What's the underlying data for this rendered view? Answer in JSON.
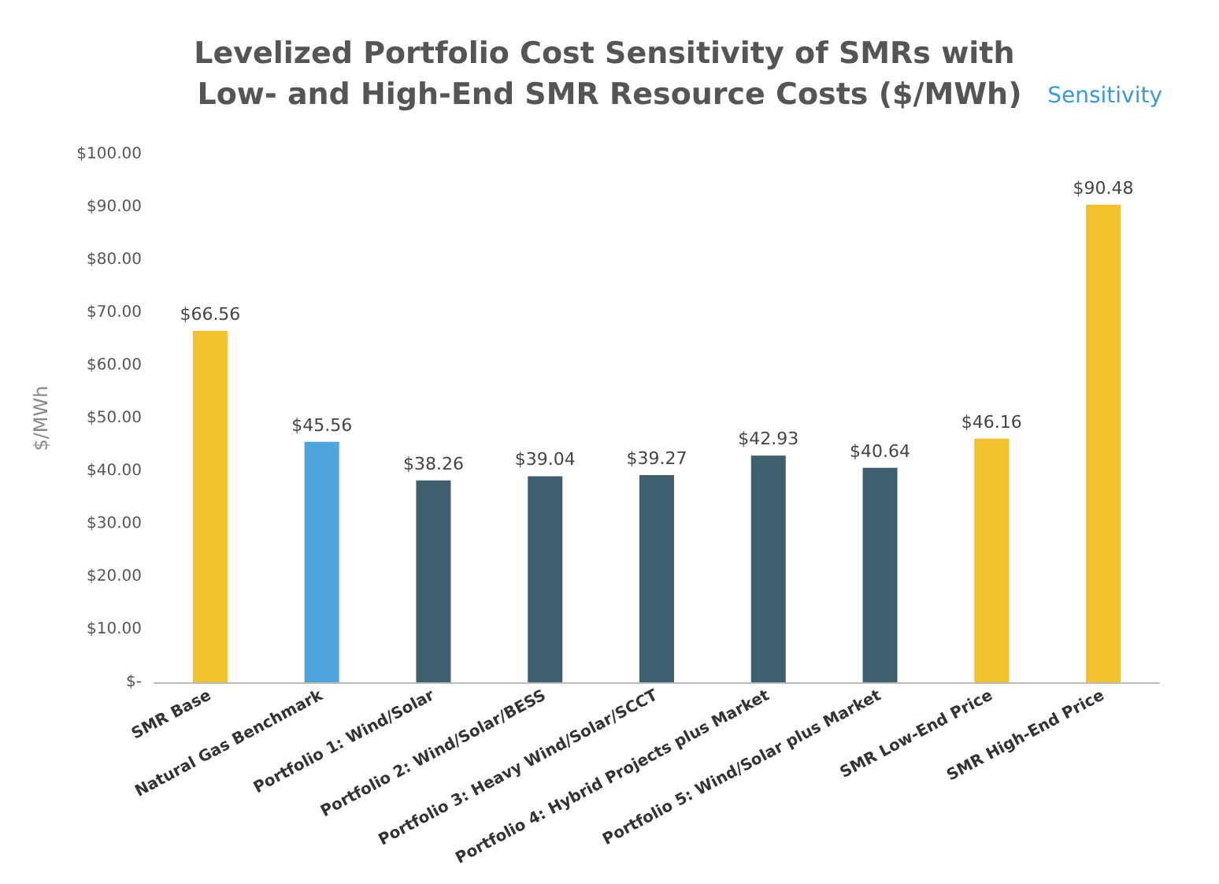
{
  "chart_data": {
    "type": "bar",
    "title": "Levelized Portfolio Cost Sensitivity of SMRs with Low- and High-End SMR Resource Costs ($/MWh)",
    "ylabel": "$/MWh",
    "annotations": [
      "Sensitivity"
    ],
    "categories": [
      "SMR Base",
      "Natural Gas Benchmark",
      "Portfolio 1: Wind/Solar",
      "Portfolio 2: Wind/Solar/BESS",
      "Portfolio 3: Heavy Wind/Solar/SCCT",
      "Portfolio 4: Hybrid Projects plus Market",
      "Portfolio 5: Wind/Solar plus Market",
      "SMR Low-End Price",
      "SMR High-End Price"
    ],
    "values": [
      66.56,
      45.56,
      38.26,
      39.04,
      39.27,
      42.93,
      40.64,
      46.16,
      90.48
    ],
    "value_labels": [
      "$66.56",
      "$45.56",
      "$38.26",
      "$39.04",
      "$39.27",
      "$42.93",
      "$40.64",
      "$46.16",
      "$90.48"
    ],
    "colors": [
      "#f2c12e",
      "#4ea6dc",
      "#3f5f6e",
      "#3f5f6e",
      "#3f5f6e",
      "#3f5f6e",
      "#3f5f6e",
      "#f2c12e",
      "#f2c12e"
    ],
    "ylim": [
      0,
      100
    ],
    "yticks": [
      {
        "value": 0,
        "label": "$-"
      },
      {
        "value": 10,
        "label": "$10.00"
      },
      {
        "value": 20,
        "label": "$20.00"
      },
      {
        "value": 30,
        "label": "$30.00"
      },
      {
        "value": 40,
        "label": "$40.00"
      },
      {
        "value": 50,
        "label": "$50.00"
      },
      {
        "value": 60,
        "label": "$60.00"
      },
      {
        "value": 70,
        "label": "$70.00"
      },
      {
        "value": 80,
        "label": "$80.00"
      },
      {
        "value": 90,
        "label": "$90.00"
      },
      {
        "value": 100,
        "label": "$100.00"
      }
    ],
    "grid": false
  }
}
